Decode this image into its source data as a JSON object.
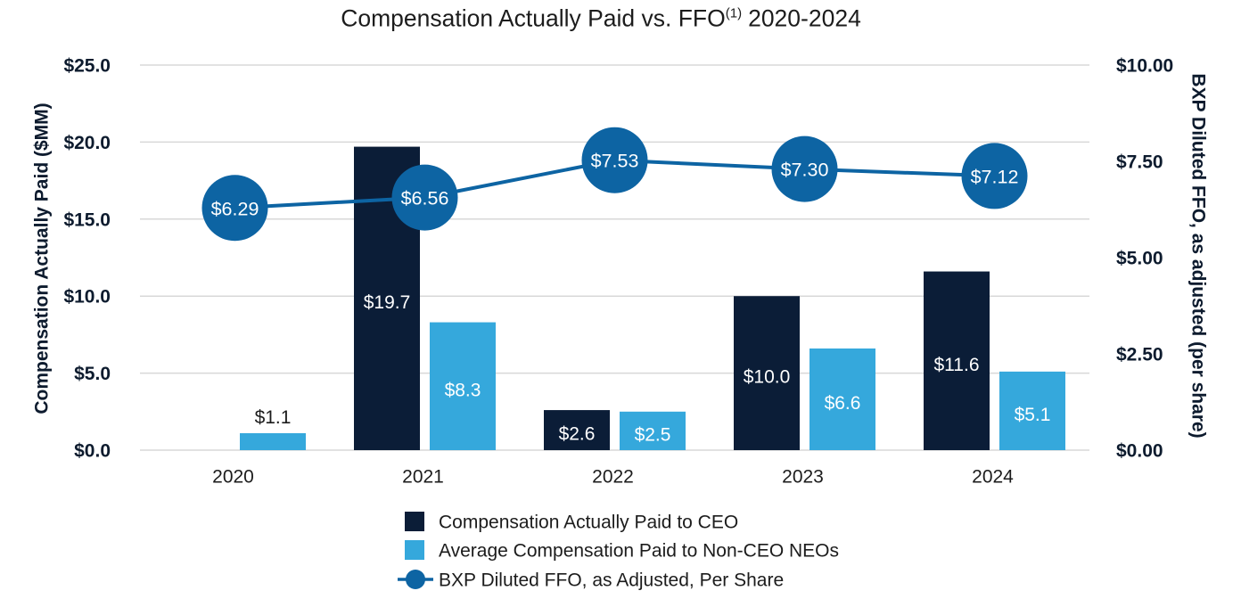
{
  "chart_data": {
    "type": "bar",
    "title": {
      "main": "Compensation Actually Paid vs. FFO",
      "footnote_marker": "(1)",
      "suffix": "2020-2024"
    },
    "categories": [
      "2020",
      "2021",
      "2022",
      "2023",
      "2024"
    ],
    "y_left": {
      "label": "Compensation Actually Paid ($MM)",
      "range": [
        0,
        25
      ],
      "ticks": [
        {
          "value": 0,
          "label": "$0.0"
        },
        {
          "value": 5,
          "label": "$5.0"
        },
        {
          "value": 10,
          "label": "$10.0"
        },
        {
          "value": 15,
          "label": "$15.0"
        },
        {
          "value": 20,
          "label": "$20.0"
        },
        {
          "value": 25,
          "label": "$25.0"
        }
      ]
    },
    "y_right": {
      "label": "BXP Diluted FFO, as adjusted (per share)",
      "range": [
        0,
        10
      ],
      "ticks": [
        {
          "value": 0,
          "label": "$0.00"
        },
        {
          "value": 2.5,
          "label": "$2.50"
        },
        {
          "value": 5,
          "label": "$5.00"
        },
        {
          "value": 7.5,
          "label": "$7.50"
        },
        {
          "value": 10,
          "label": "$10.00"
        }
      ]
    },
    "series": [
      {
        "name": "Compensation Actually Paid to CEO",
        "color": "#0b1d37",
        "values": [
          null,
          19.7,
          2.6,
          10.0,
          11.6
        ],
        "labels": [
          null,
          "$19.7",
          "$2.6",
          "$10.0",
          "$11.6"
        ]
      },
      {
        "name": "Average Compensation Paid to Non-CEO NEOs",
        "color": "#35a8dc",
        "values": [
          1.1,
          8.3,
          2.5,
          6.6,
          5.1
        ],
        "labels": [
          "$1.1",
          "$8.3",
          "$2.5",
          "$6.6",
          "$5.1"
        ]
      }
    ],
    "line": {
      "name": "BXP Diluted FFO, as Adjusted, Per Share",
      "color": "#0d64a3",
      "values": [
        6.29,
        6.56,
        7.53,
        7.3,
        7.12
      ],
      "labels": [
        "$6.29",
        "$6.56",
        "$7.53",
        "$7.30",
        "$7.12"
      ]
    },
    "grid": true,
    "legend": "bottom"
  }
}
